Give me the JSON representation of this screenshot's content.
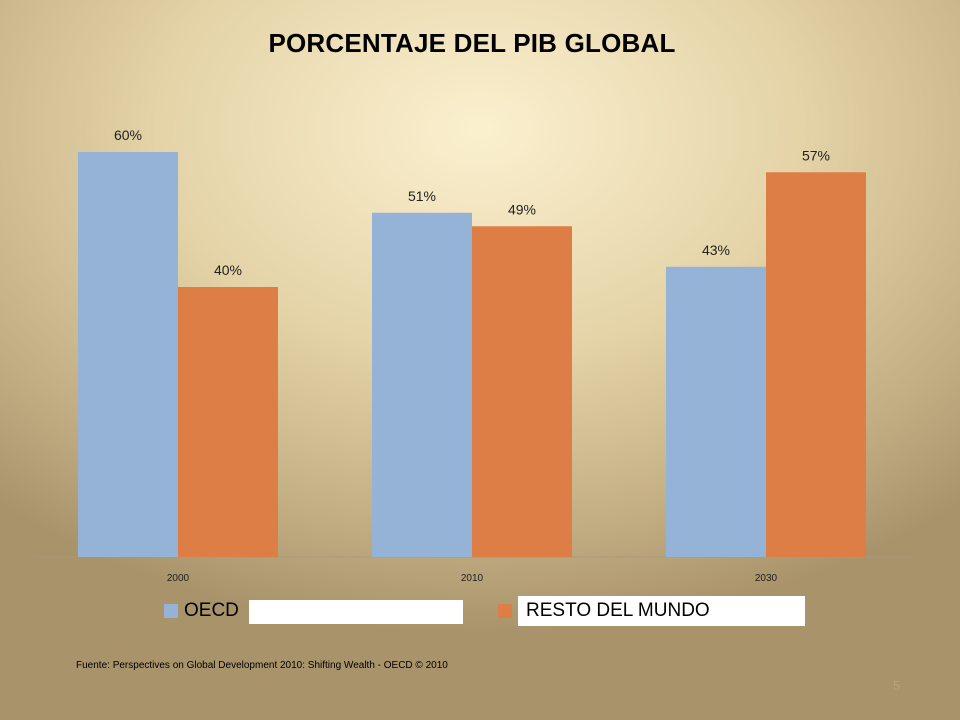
{
  "slide": {
    "source": "Fuente:  Perspectives on Global Development 2010: Shifting Wealth - OECD © 2010",
    "page_number": "5"
  },
  "colors": {
    "oecd": "#95b3d7",
    "resto": "#dd7e47"
  },
  "chart_data": {
    "type": "bar",
    "title": "PORCENTAJE DEL PIB GLOBAL",
    "categories": [
      "2000",
      "2010",
      "2030"
    ],
    "series": [
      {
        "name": "OECD",
        "values": [
          60,
          51,
          43
        ],
        "labels": [
          "60%",
          "51%",
          "43%"
        ]
      },
      {
        "name": "RESTO DEL MUNDO",
        "values": [
          40,
          49,
          57
        ],
        "labels": [
          "40%",
          "49%",
          "57%"
        ]
      }
    ],
    "xlabel": "",
    "ylabel": "",
    "ylim": [
      0,
      60
    ],
    "grid": false,
    "legend": "bottom"
  }
}
